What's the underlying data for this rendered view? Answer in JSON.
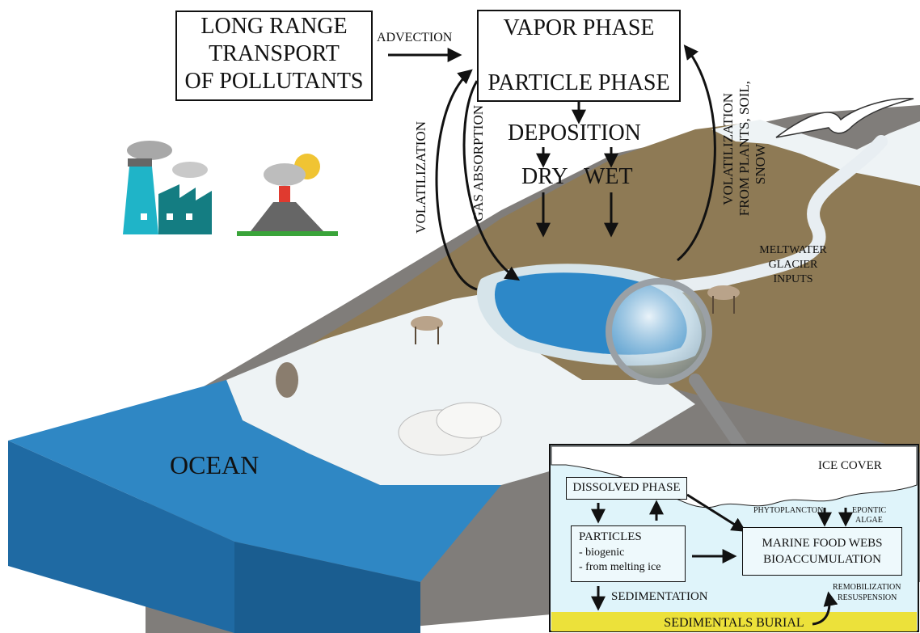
{
  "transport_box": {
    "line1": "LONG RANGE",
    "line2": "TRANSPORT",
    "line3": "OF POLLUTANTS"
  },
  "advection": "ADVECTION",
  "phase_box": {
    "vapor": "VAPOR PHASE",
    "particle": "PARTICLE PHASE"
  },
  "deposition": "DEPOSITION",
  "dry": "DRY",
  "wet": "WET",
  "volatilization": "VOLATILIZATION",
  "gas_absorption": "GAS ABSORPTION",
  "volatilization_from": {
    "line1": "VOLATILIZATION",
    "line2": "FROM PLANTS, SOIL,",
    "line3": "SNOW"
  },
  "meltwater": {
    "line1": "MELTWATER",
    "line2": "GLACIER",
    "line3": "INPUTS"
  },
  "ocean": "OCEAN",
  "inset": {
    "ice_cover": "ICE COVER",
    "dissolved_phase": "DISSOLVED PHASE",
    "phytoplancton": "PHYTOPLANCTON",
    "epontic": {
      "line1": "EPONTIC",
      "line2": "ALGAE"
    },
    "particles": {
      "title": "PARTICLES",
      "item1": "- biogenic",
      "item2": "- from melting ice"
    },
    "food_webs": {
      "line1": "MARINE FOOD WEBS",
      "line2": "BIOACCUMULATION"
    },
    "sedimentation": "SEDIMENTATION",
    "remobilization": {
      "line1": "REMOBILIZATION",
      "line2": "RESUSPENSION"
    },
    "burial": "SEDIMENTALS BURIAL"
  },
  "colors": {
    "ocean": "#2f87c4",
    "ocean_side": "#1f6aa3",
    "land": "#8e7a55",
    "rock": "#807d7a",
    "ice": "#eef3f5",
    "lake": "#2d88c8",
    "factory": "#1fb4c8",
    "sediment": "#ece13a",
    "inset_bg": "#dff4fa"
  }
}
